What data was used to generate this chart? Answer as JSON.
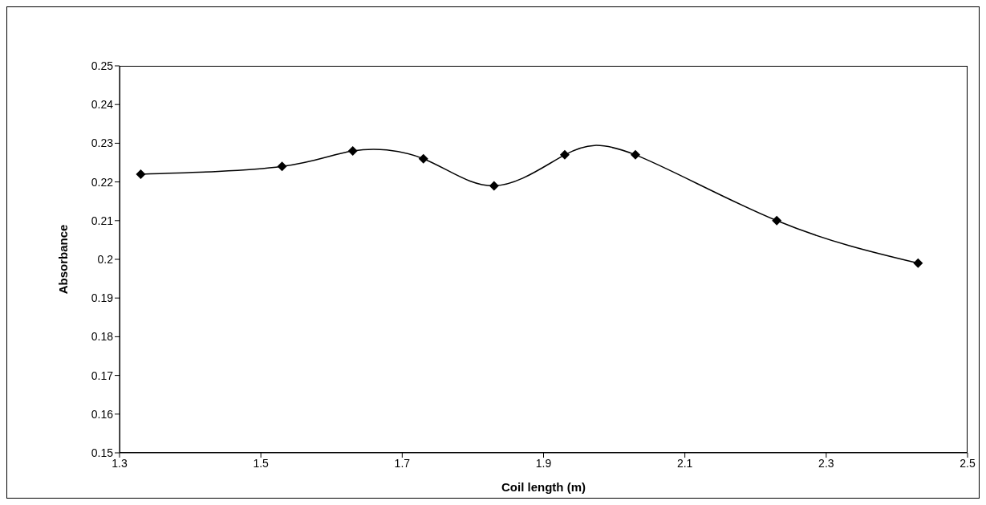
{
  "chart_data": {
    "type": "line",
    "xlabel": "Coil length (m)",
    "ylabel": "Absorbance",
    "x": [
      1.33,
      1.53,
      1.63,
      1.73,
      1.83,
      1.93,
      2.03,
      2.23,
      2.43
    ],
    "series": [
      {
        "color": "#000000",
        "values": [
          0.222,
          0.224,
          0.228,
          0.226,
          0.219,
          0.227,
          0.227,
          0.21,
          0.199
        ]
      }
    ],
    "xlim": [
      1.3,
      2.5
    ],
    "xticks": [
      1.3,
      1.5,
      1.7,
      1.9,
      2.1,
      2.3,
      2.5
    ],
    "ylim": [
      0.15,
      0.25
    ],
    "yticks": [
      0.15,
      0.16,
      0.17,
      0.18,
      0.19,
      0.2,
      0.21,
      0.22,
      0.23,
      0.24,
      0.25
    ],
    "grid": false,
    "legend": false,
    "marker": "diamond",
    "line_style": "solid"
  }
}
